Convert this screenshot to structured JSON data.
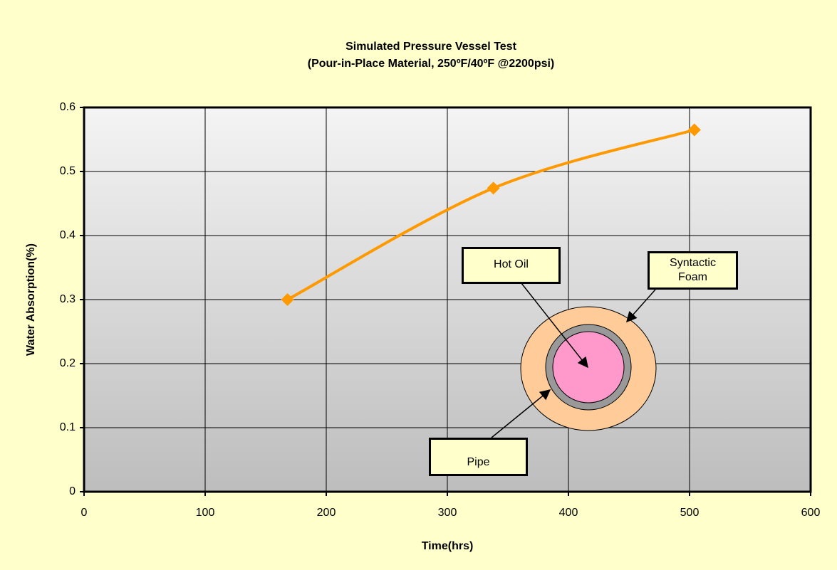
{
  "chart_data": {
    "type": "line",
    "title": "Simulated Pressure Vessel Test",
    "subtitle": "(Pour-in-Place Material, 250ºF/40ºF @2200psi)",
    "x_label": "Time(hrs)",
    "y_label": "Water Absorption(%)",
    "x": [
      168,
      338,
      504
    ],
    "series": [
      {
        "color": "#ff9900",
        "values": [
          0.3,
          0.474,
          0.565
        ]
      }
    ],
    "xlim": [
      0,
      600
    ],
    "xticks": [
      0,
      100,
      200,
      300,
      400,
      500,
      600
    ],
    "ylim": [
      0,
      0.6
    ],
    "yticks": [
      0,
      0.1,
      0.2,
      0.3,
      0.4,
      0.5,
      0.6
    ],
    "grid": true,
    "annotations": [
      "Hot Oil",
      "Syntactic Foam",
      "Pipe"
    ]
  }
}
